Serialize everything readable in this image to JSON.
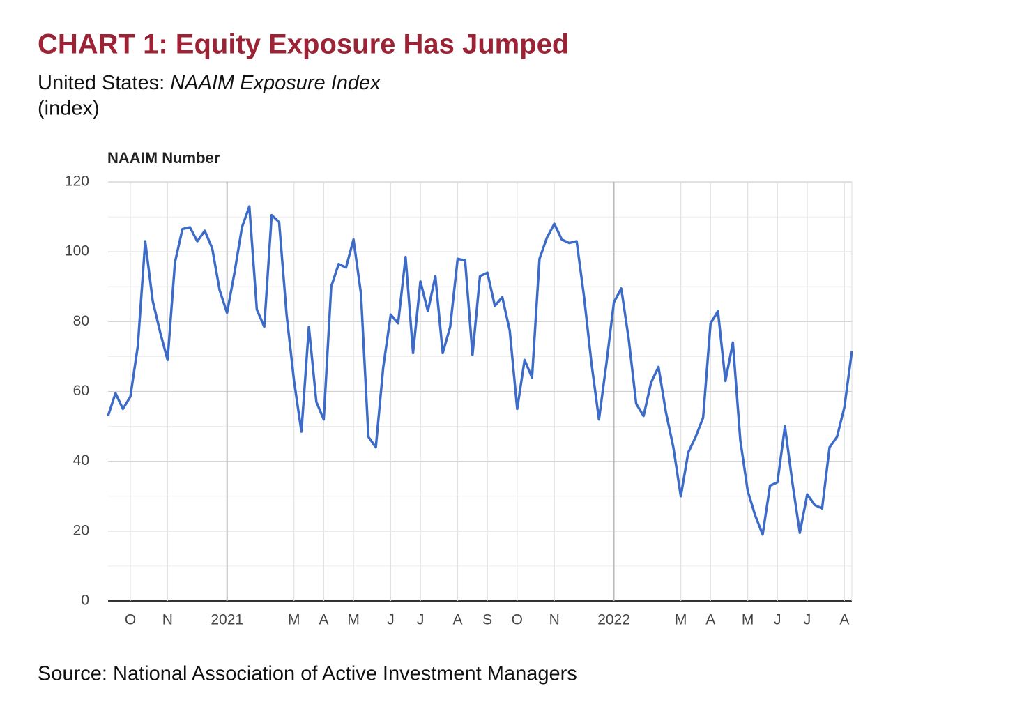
{
  "chart_data": {
    "type": "line",
    "title": "CHART 1: Equity Exposure Has Jumped",
    "subtitle": [
      "United States: ",
      "NAAIM Exposure Index"
    ],
    "units": "(index)",
    "y_label": "NAAIM Number",
    "source": "Source: National Association of Active Investment Managers",
    "categories": [
      null,
      null,
      null,
      "O",
      null,
      null,
      null,
      null,
      "N",
      null,
      null,
      null,
      null,
      null,
      null,
      null,
      "2021",
      null,
      null,
      null,
      null,
      null,
      null,
      null,
      null,
      "M",
      null,
      null,
      null,
      "A",
      null,
      null,
      null,
      "M",
      null,
      null,
      null,
      null,
      "J",
      null,
      null,
      null,
      "J",
      null,
      null,
      null,
      null,
      "A",
      null,
      null,
      null,
      "S",
      null,
      null,
      null,
      "O",
      null,
      null,
      null,
      null,
      "N",
      null,
      null,
      null,
      null,
      null,
      null,
      null,
      "2022",
      null,
      null,
      null,
      null,
      null,
      null,
      null,
      null,
      "M",
      null,
      null,
      null,
      "A",
      null,
      null,
      null,
      null,
      "M",
      null,
      null,
      null,
      "J",
      null,
      null,
      null,
      "J",
      null,
      null,
      null,
      null,
      "A",
      null
    ],
    "series": [
      {
        "name": "NAAIM Number",
        "color": "#3d6cc8",
        "values": [
          53,
          59.5,
          55,
          58.5,
          73,
          103,
          86,
          77,
          69,
          97,
          106.5,
          107,
          103,
          106,
          101,
          89,
          82.5,
          94,
          107,
          113,
          83.5,
          78.5,
          110.5,
          108.5,
          82,
          63,
          48.5,
          78.5,
          57,
          52,
          90,
          96.5,
          95.5,
          103.5,
          88,
          47,
          44,
          67,
          82,
          79.5,
          98.5,
          71,
          91.5,
          83,
          93,
          71,
          78.5,
          98,
          97.5,
          70.5,
          93,
          94,
          84.5,
          87,
          77.5,
          55,
          69,
          64,
          98,
          104,
          108,
          103.5,
          102.5,
          103,
          87,
          68,
          52,
          68,
          85.5,
          89.5,
          75,
          56.5,
          53,
          62.5,
          67,
          54,
          44,
          30,
          42.5,
          47,
          52.5,
          79.5,
          83,
          63,
          74,
          46,
          31.5,
          24.5,
          19,
          33,
          34,
          50,
          34,
          19.5,
          30.5,
          27.5,
          26.5,
          44,
          47,
          55.5,
          71.5
        ]
      }
    ],
    "ylim": [
      0,
      120
    ],
    "yticks": [
      0,
      20,
      40,
      60,
      80,
      100,
      120
    ],
    "grid": true
  }
}
